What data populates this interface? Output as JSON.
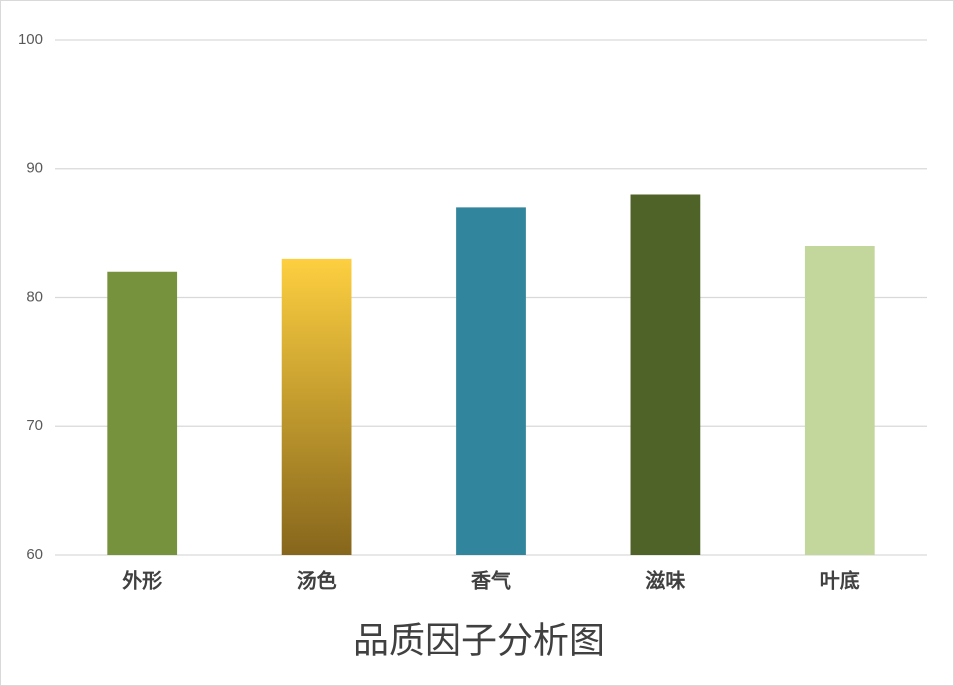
{
  "chart_data": {
    "type": "bar",
    "title": "品质因子分析图",
    "categories": [
      "外形",
      "汤色",
      "香气",
      "滋味",
      "叶底"
    ],
    "values": [
      82,
      83,
      87,
      88,
      84
    ],
    "colors": [
      "#77923c",
      {
        "top": "#fdcf40",
        "bottom": "#86661c"
      },
      "#31859c",
      "#4f6228",
      "#c3d69b"
    ],
    "ylim": [
      60,
      100
    ],
    "yticks": [
      60,
      70,
      80,
      90,
      100
    ],
    "grid": true
  }
}
